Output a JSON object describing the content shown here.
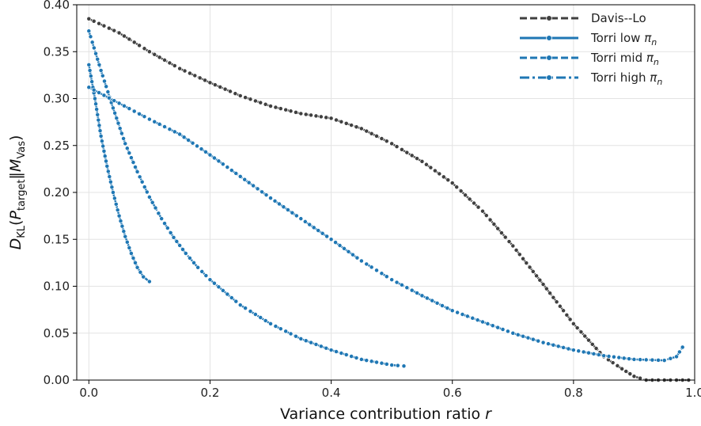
{
  "chart_data": {
    "type": "line",
    "xlabel": "Variance contribution ratio r",
    "ylabel": "D_KL(P_target||M_Vas)",
    "xlim": [
      -0.02,
      1.0
    ],
    "ylim": [
      0.0,
      0.4
    ],
    "xticks": [
      0.0,
      0.2,
      0.4,
      0.6,
      0.8,
      1.0
    ],
    "xtick_labels": [
      "0.0",
      "0.2",
      "0.4",
      "0.6",
      "0.8",
      "1.0"
    ],
    "yticks": [
      0.0,
      0.05,
      0.1,
      0.15,
      0.2,
      0.25,
      0.3,
      0.35,
      0.4
    ],
    "ytick_labels": [
      "0.00",
      "0.05",
      "0.10",
      "0.15",
      "0.20",
      "0.25",
      "0.30",
      "0.35",
      "0.40"
    ],
    "grid": true,
    "legend_position": "top-right",
    "series": [
      {
        "name": "Davis--Lo",
        "color": "#404040",
        "dash": "dashed",
        "points": [
          [
            0.0,
            0.385
          ],
          [
            0.05,
            0.37
          ],
          [
            0.1,
            0.35
          ],
          [
            0.15,
            0.332
          ],
          [
            0.2,
            0.317
          ],
          [
            0.25,
            0.303
          ],
          [
            0.3,
            0.292
          ],
          [
            0.35,
            0.284
          ],
          [
            0.4,
            0.279
          ],
          [
            0.45,
            0.268
          ],
          [
            0.5,
            0.252
          ],
          [
            0.55,
            0.233
          ],
          [
            0.6,
            0.21
          ],
          [
            0.65,
            0.18
          ],
          [
            0.7,
            0.143
          ],
          [
            0.75,
            0.102
          ],
          [
            0.8,
            0.06
          ],
          [
            0.85,
            0.025
          ],
          [
            0.88,
            0.012
          ],
          [
            0.9,
            0.004
          ],
          [
            0.92,
            0.0
          ],
          [
            0.95,
            0.0
          ],
          [
            0.99,
            0.0
          ]
        ]
      },
      {
        "name": "Torri low π_n",
        "color": "#1f77b4",
        "dash": "solid",
        "points": [
          [
            0.0,
            0.336
          ],
          [
            0.01,
            0.3
          ],
          [
            0.02,
            0.26
          ],
          [
            0.03,
            0.228
          ],
          [
            0.04,
            0.2
          ],
          [
            0.05,
            0.175
          ],
          [
            0.06,
            0.153
          ],
          [
            0.07,
            0.135
          ],
          [
            0.08,
            0.12
          ],
          [
            0.09,
            0.11
          ],
          [
            0.1,
            0.105
          ]
        ]
      },
      {
        "name": "Torri mid π_n",
        "color": "#1f77b4",
        "dash": "dashed",
        "points": [
          [
            0.0,
            0.372
          ],
          [
            0.02,
            0.33
          ],
          [
            0.04,
            0.29
          ],
          [
            0.06,
            0.252
          ],
          [
            0.08,
            0.222
          ],
          [
            0.1,
            0.195
          ],
          [
            0.12,
            0.172
          ],
          [
            0.14,
            0.152
          ],
          [
            0.16,
            0.135
          ],
          [
            0.18,
            0.12
          ],
          [
            0.2,
            0.107
          ],
          [
            0.25,
            0.08
          ],
          [
            0.3,
            0.06
          ],
          [
            0.35,
            0.044
          ],
          [
            0.4,
            0.032
          ],
          [
            0.45,
            0.022
          ],
          [
            0.5,
            0.016
          ],
          [
            0.52,
            0.015
          ]
        ]
      },
      {
        "name": "Torri high π_n",
        "color": "#1f77b4",
        "dash": "dashdot",
        "points": [
          [
            0.0,
            0.312
          ],
          [
            0.05,
            0.295
          ],
          [
            0.1,
            0.278
          ],
          [
            0.15,
            0.262
          ],
          [
            0.2,
            0.24
          ],
          [
            0.25,
            0.217
          ],
          [
            0.3,
            0.194
          ],
          [
            0.35,
            0.172
          ],
          [
            0.4,
            0.15
          ],
          [
            0.45,
            0.127
          ],
          [
            0.5,
            0.107
          ],
          [
            0.55,
            0.09
          ],
          [
            0.6,
            0.074
          ],
          [
            0.65,
            0.062
          ],
          [
            0.7,
            0.05
          ],
          [
            0.75,
            0.04
          ],
          [
            0.8,
            0.032
          ],
          [
            0.85,
            0.026
          ],
          [
            0.9,
            0.022
          ],
          [
            0.95,
            0.021
          ],
          [
            0.97,
            0.025
          ],
          [
            0.98,
            0.035
          ]
        ]
      }
    ]
  }
}
